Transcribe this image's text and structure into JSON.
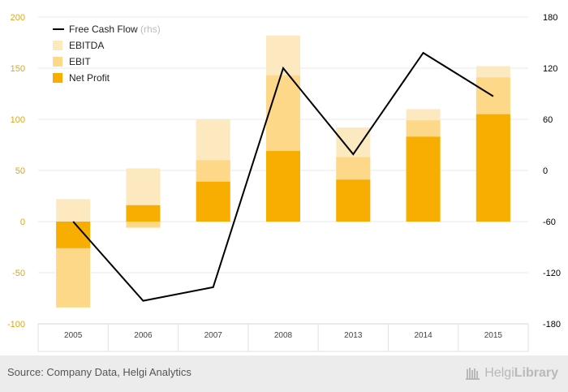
{
  "chart_data": {
    "type": "bar",
    "categories": [
      "2005",
      "2006",
      "2007",
      "2008",
      "2013",
      "2014",
      "2015"
    ],
    "series": [
      {
        "name": "EBITDA",
        "values": [
          22,
          52,
          100,
          182,
          92,
          110,
          152
        ],
        "color": "#fde9c0"
      },
      {
        "name": "EBIT",
        "values": [
          -84,
          -6,
          60,
          143,
          63,
          99,
          141
        ],
        "color": "#fdd888"
      },
      {
        "name": "Net Profit",
        "values": [
          -26,
          16,
          39,
          69,
          41,
          83,
          105
        ],
        "color": "#f7ae00"
      }
    ],
    "line_series": {
      "name": "Free Cash Flow",
      "name_suffix": "(rhs)",
      "axis": "right",
      "values": [
        -60,
        -153,
        -137,
        120,
        19,
        138,
        87
      ],
      "color": "#000000"
    },
    "ylim_left": [
      -100,
      200
    ],
    "yticks_left": [
      -100,
      -50,
      0,
      50,
      100,
      150,
      200
    ],
    "ylim_right": [
      -180,
      180
    ],
    "yticks_right": [
      -180,
      -120,
      -60,
      0,
      60,
      120,
      180
    ],
    "legend_position": "top-left",
    "grid": true
  },
  "footer": {
    "source": "Source: Company Data, Helgi Analytics",
    "brand_part1": "Helgi",
    "brand_part2": "Library"
  }
}
